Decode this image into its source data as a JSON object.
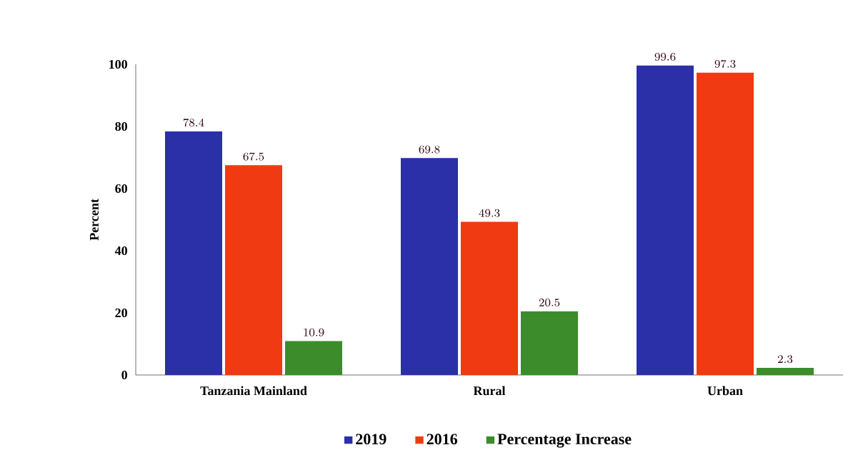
{
  "chart_data": {
    "type": "bar",
    "ylabel": "Percent",
    "categories": [
      "Tanzania Mainland",
      "Rural",
      "Urban"
    ],
    "series": [
      {
        "name": "2019",
        "color": "#2b2fa8",
        "values": [
          78.4,
          69.8,
          99.6
        ]
      },
      {
        "name": "2016",
        "color": "#f03a12",
        "values": [
          67.5,
          49.3,
          97.3
        ]
      },
      {
        "name": "Percentage Increase",
        "color": "#3c8c2c",
        "values": [
          10.9,
          20.5,
          2.3
        ]
      }
    ],
    "ylim": [
      0,
      100
    ],
    "yticks": [
      0,
      20,
      40,
      60,
      80,
      100
    ],
    "grid": false,
    "legend": "bottom",
    "data_labels": true
  }
}
